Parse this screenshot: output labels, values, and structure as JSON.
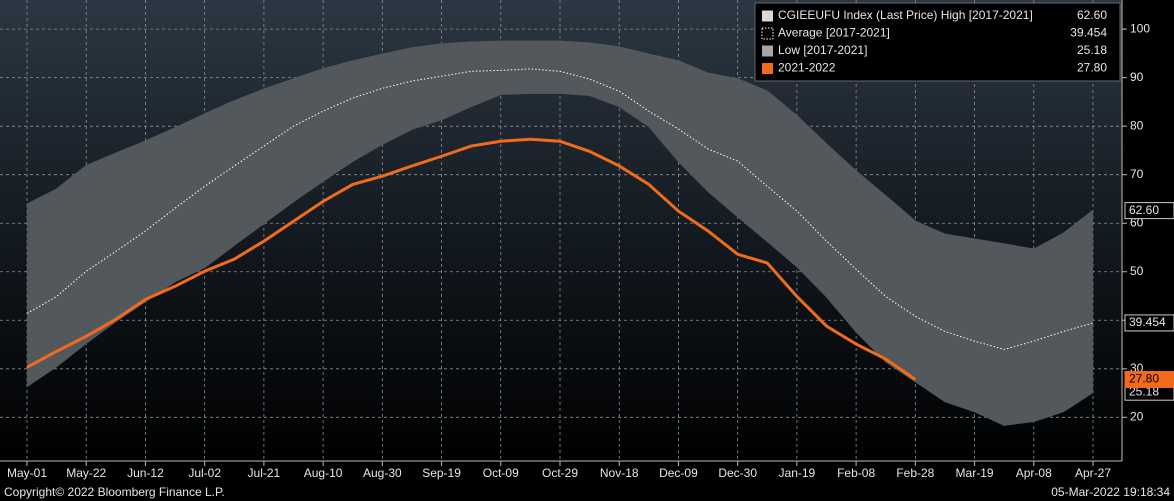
{
  "chart_data": {
    "type": "line",
    "categories": [
      "May-01",
      null,
      "May-22",
      null,
      "Jun-12",
      null,
      "Jul-02",
      null,
      "Jul-21",
      null,
      "Aug-10",
      null,
      "Aug-30",
      null,
      "Sep-19",
      null,
      "Oct-09",
      null,
      "Oct-29",
      null,
      "Nov-18",
      null,
      "Dec-09",
      null,
      "Dec-30",
      null,
      "Jan-19",
      null,
      "Feb-08",
      null,
      "Feb-28",
      null,
      "Mar-19",
      null,
      "Apr-08",
      null,
      "Apr-27"
    ],
    "series": [
      {
        "name": "CGIEEUFU Index (Last Price) High [2017-2021]",
        "color": "#d9d9d9",
        "fill": "#53585c",
        "last_value": 62.6,
        "last_label": "62.60",
        "values": [
          63.9,
          67.0,
          71.8,
          74.4,
          76.9,
          79.6,
          82.5,
          85.2,
          87.6,
          89.7,
          91.8,
          93.4,
          94.8,
          96.1,
          96.9,
          97.3,
          97.5,
          97.5,
          97.5,
          97.1,
          96.3,
          94.8,
          93.4,
          90.9,
          89.7,
          87.2,
          82.1,
          76.3,
          70.7,
          65.6,
          60.4,
          57.7,
          56.7,
          55.7,
          54.6,
          57.9,
          62.6
        ]
      },
      {
        "name": "Average  [2017-2021]",
        "color": "#ffffff",
        "last_value": 39.454,
        "last_label": "39.454",
        "values": [
          41.4,
          44.9,
          50.1,
          54.2,
          58.4,
          63.1,
          67.6,
          71.8,
          75.9,
          80.0,
          83.1,
          85.8,
          87.8,
          89.3,
          90.3,
          91.3,
          91.5,
          91.8,
          91.3,
          89.7,
          87.2,
          83.1,
          79.4,
          75.3,
          72.8,
          67.6,
          62.5,
          56.3,
          50.5,
          44.9,
          40.8,
          37.7,
          35.7,
          34.0,
          35.7,
          37.7,
          39.454
        ]
      },
      {
        "name": "Low  [2017-2021]",
        "color": "#a6a6a6",
        "last_value": 25.18,
        "last_label": "25.18",
        "values": [
          26.4,
          30.5,
          35.3,
          39.8,
          43.9,
          48.0,
          50.9,
          55.5,
          60.0,
          64.5,
          68.7,
          72.8,
          76.3,
          79.4,
          81.4,
          84.1,
          86.6,
          86.8,
          86.8,
          86.4,
          84.1,
          80.0,
          72.8,
          66.6,
          61.4,
          56.3,
          51.1,
          44.9,
          37.7,
          31.5,
          27.4,
          23.3,
          21.2,
          18.4,
          19.2,
          21.2,
          25.18
        ]
      },
      {
        "name": "2021-2022",
        "color": "#f26b1d",
        "last_value": 27.8,
        "last_label": "27.80",
        "values": [
          30.3,
          33.6,
          36.7,
          40.2,
          44.3,
          47.0,
          50.1,
          52.6,
          56.3,
          60.4,
          64.5,
          68.0,
          69.7,
          71.8,
          73.8,
          75.9,
          76.9,
          77.3,
          76.9,
          74.8,
          71.8,
          68.0,
          62.5,
          58.4,
          53.6,
          51.8,
          44.9,
          38.8,
          35.1,
          32.0,
          27.8,
          null,
          null,
          null,
          null,
          null,
          null
        ]
      }
    ],
    "ylim": [
      11,
      106
    ],
    "yticks": [
      20,
      30,
      40,
      50,
      60,
      70,
      80,
      90,
      100
    ],
    "grid": true,
    "y_axis_side": "right",
    "legend": "upper right",
    "footer_left": "Copyright© 2022 Bloomberg Finance L.P.",
    "footer_right": "05-Mar-2022 19:18:34"
  }
}
